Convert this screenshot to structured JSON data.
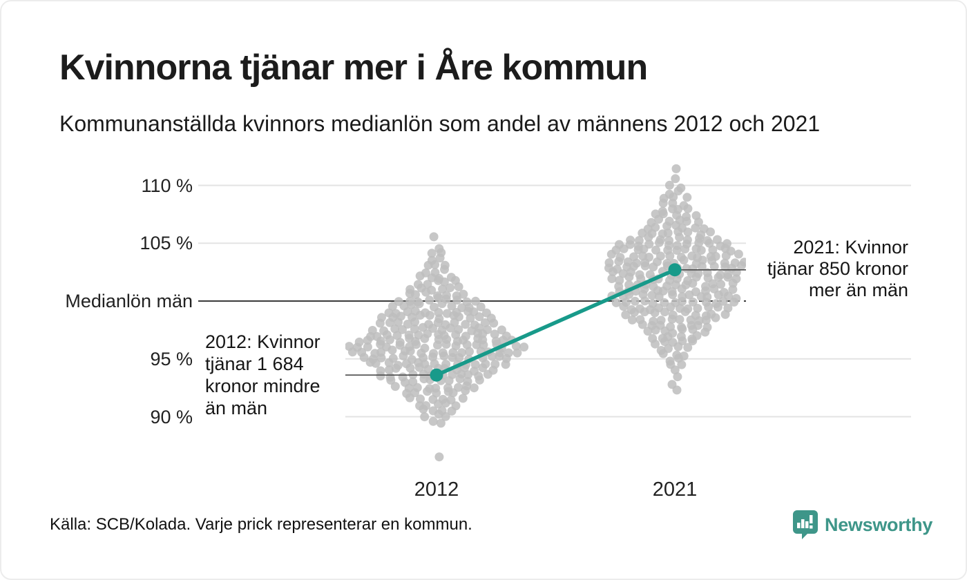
{
  "chart_data": {
    "type": "beeswarm",
    "title": "Kvinnorna tjänar mer i Åre kommun",
    "subtitle": "Kommunanställda kvinnors medianlön som andel av männens 2012 och 2021",
    "categories": [
      "2012",
      "2021"
    ],
    "unit": "%",
    "ylim": [
      86,
      112
    ],
    "grid": true,
    "legend": "none",
    "y_axis": {
      "ticks": [
        {
          "value": 110,
          "label": "110 %"
        },
        {
          "value": 105,
          "label": "105 %"
        },
        {
          "value": 100,
          "label": "Medianlön män"
        },
        {
          "value": 95,
          "label": "95 %"
        },
        {
          "value": 90,
          "label": "90 %"
        }
      ]
    },
    "highlight": {
      "name": "Åre kommun",
      "color": "#189a8a",
      "series": [
        {
          "year": "2012",
          "percent": 93.6
        },
        {
          "year": "2021",
          "percent": 102.7
        }
      ]
    },
    "annotations": [
      {
        "year": "2012",
        "side": "left",
        "lines": [
          "2012: Kvinnor",
          "tjänar 1 684",
          "kronor mindre",
          "än män"
        ]
      },
      {
        "year": "2021",
        "side": "right",
        "lines": [
          "2021: Kvinnor",
          "tjänar 850 kronor",
          "mer än män"
        ]
      }
    ],
    "distributions": {
      "2012": [
        [
          105.4,
          1
        ],
        [
          104.6,
          1
        ],
        [
          104.1,
          2
        ],
        [
          103.6,
          2
        ],
        [
          103.1,
          3
        ],
        [
          102.6,
          3
        ],
        [
          102.1,
          4
        ],
        [
          101.6,
          5
        ],
        [
          101.1,
          6
        ],
        [
          100.6,
          7
        ],
        [
          100.1,
          9
        ],
        [
          99.6,
          10
        ],
        [
          99.1,
          11
        ],
        [
          98.6,
          12
        ],
        [
          98.1,
          13
        ],
        [
          97.6,
          14
        ],
        [
          97.1,
          15
        ],
        [
          96.6,
          17
        ],
        [
          96.1,
          19
        ],
        [
          95.6,
          18
        ],
        [
          95.1,
          16
        ],
        [
          94.6,
          15
        ],
        [
          94.1,
          13
        ],
        [
          93.6,
          12
        ],
        [
          93.1,
          10
        ],
        [
          92.6,
          9
        ],
        [
          92.1,
          7
        ],
        [
          91.6,
          6
        ],
        [
          91.1,
          5
        ],
        [
          90.6,
          4
        ],
        [
          90.1,
          3
        ],
        [
          89.6,
          2
        ],
        [
          86.4,
          1
        ]
      ],
      "2021": [
        [
          111.4,
          1
        ],
        [
          110.5,
          1
        ],
        [
          109.9,
          2
        ],
        [
          109.4,
          2
        ],
        [
          108.9,
          3
        ],
        [
          108.4,
          3
        ],
        [
          107.9,
          4
        ],
        [
          107.4,
          5
        ],
        [
          106.9,
          6
        ],
        [
          106.4,
          7
        ],
        [
          105.9,
          8
        ],
        [
          105.4,
          10
        ],
        [
          104.9,
          12
        ],
        [
          104.4,
          13
        ],
        [
          103.9,
          14
        ],
        [
          103.4,
          15
        ],
        [
          102.9,
          15
        ],
        [
          102.4,
          14
        ],
        [
          101.9,
          14
        ],
        [
          101.4,
          13
        ],
        [
          100.9,
          13
        ],
        [
          100.4,
          14
        ],
        [
          99.9,
          13
        ],
        [
          99.4,
          12
        ],
        [
          98.9,
          11
        ],
        [
          98.4,
          10
        ],
        [
          97.9,
          8
        ],
        [
          97.4,
          7
        ],
        [
          96.9,
          6
        ],
        [
          96.4,
          5
        ],
        [
          95.9,
          4
        ],
        [
          95.4,
          3
        ],
        [
          94.9,
          2
        ],
        [
          94.4,
          2
        ],
        [
          93.9,
          1
        ],
        [
          93.4,
          1
        ],
        [
          92.9,
          1
        ],
        [
          92.4,
          1
        ]
      ]
    },
    "colors": {
      "grid": "#e3e3e3",
      "median_line": "#3a3a3a",
      "dot": "#bdbdbd",
      "connector": "#4a4a4a",
      "highlight": "#189a8a"
    }
  },
  "footer": {
    "source": "Källa: SCB/Kolada. Varje prick representerar en kommun.",
    "brand": "Newsworthy",
    "brand_color": "#3e9689"
  }
}
